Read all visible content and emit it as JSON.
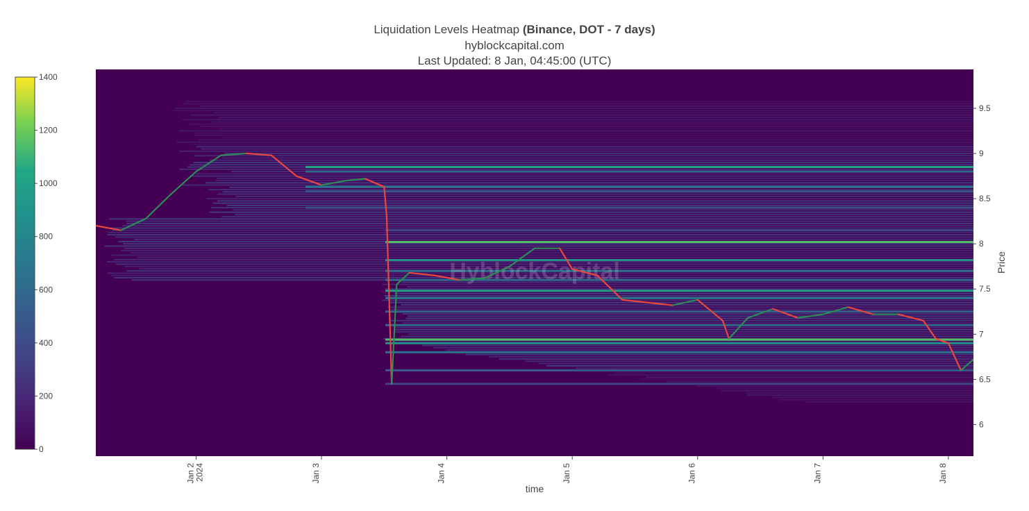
{
  "title": {
    "main": "Liquidation Levels Heatmap ",
    "bold": "(Binance, DOT - 7 days)",
    "site": "hyblockcapital.com",
    "updated": "Last Updated: 8 Jan, 04:45:00 (UTC)"
  },
  "watermark": "HyblockCapital",
  "chart_data": {
    "type": "heatmap",
    "xlabel": "time",
    "ylabel": "Price",
    "x_ticks": [
      {
        "label": "Jan 2",
        "sub": "2024",
        "value": 1.0
      },
      {
        "label": "Jan 3",
        "sub": "",
        "value": 2.0
      },
      {
        "label": "Jan 4",
        "sub": "",
        "value": 3.0
      },
      {
        "label": "Jan 5",
        "sub": "",
        "value": 4.0
      },
      {
        "label": "Jan 6",
        "sub": "",
        "value": 5.0
      },
      {
        "label": "Jan 7",
        "sub": "",
        "value": 6.0
      },
      {
        "label": "Jan 8",
        "sub": "",
        "value": 7.0
      }
    ],
    "xlim": [
      0.2,
      7.2
    ],
    "y_ticks": [
      6,
      6.5,
      7,
      7.5,
      8,
      8.5,
      9,
      9.5
    ],
    "y_tick_labels": [
      "6",
      "6.5",
      "7",
      "7.5",
      "8",
      "8.5",
      "9",
      "9.5"
    ],
    "ylim": [
      5.65,
      9.93
    ],
    "colorbar": {
      "min": 0,
      "max": 1400,
      "ticks": [
        0,
        200,
        400,
        600,
        800,
        1000,
        1200,
        1400
      ],
      "colorscale": "viridis",
      "position": "left"
    },
    "price_series": {
      "name": "DOT price",
      "x": [
        0.2,
        0.4,
        0.6,
        0.8,
        1.0,
        1.2,
        1.4,
        1.6,
        1.8,
        2.0,
        2.2,
        2.35,
        2.5,
        2.52,
        2.56,
        2.6,
        2.7,
        2.9,
        3.1,
        3.3,
        3.5,
        3.7,
        3.9,
        4.0,
        4.2,
        4.4,
        4.6,
        4.8,
        5.0,
        5.2,
        5.25,
        5.4,
        5.6,
        5.8,
        6.0,
        6.2,
        6.4,
        6.6,
        6.8,
        6.9,
        7.0,
        7.1,
        7.2
      ],
      "y": [
        8.2,
        8.15,
        8.28,
        8.55,
        8.8,
        8.98,
        9.0,
        8.98,
        8.75,
        8.65,
        8.7,
        8.72,
        8.63,
        8.3,
        6.45,
        7.55,
        7.68,
        7.65,
        7.6,
        7.62,
        7.75,
        7.95,
        7.95,
        7.72,
        7.65,
        7.38,
        7.35,
        7.32,
        7.38,
        7.15,
        6.95,
        7.18,
        7.28,
        7.18,
        7.22,
        7.3,
        7.22,
        7.22,
        7.15,
        6.95,
        6.9,
        6.6,
        6.72
      ]
    },
    "liquidation_levels": [
      {
        "price": 8.85,
        "value": 1050
      },
      {
        "price": 8.8,
        "value": 600
      },
      {
        "price": 8.63,
        "value": 700
      },
      {
        "price": 8.58,
        "value": 500
      },
      {
        "price": 8.4,
        "value": 450
      },
      {
        "price": 8.15,
        "value": 400
      },
      {
        "price": 8.02,
        "value": 1150
      },
      {
        "price": 7.82,
        "value": 900
      },
      {
        "price": 7.7,
        "value": 650
      },
      {
        "price": 7.6,
        "value": 600
      },
      {
        "price": 7.48,
        "value": 1000
      },
      {
        "price": 7.4,
        "value": 700
      },
      {
        "price": 7.25,
        "value": 550
      },
      {
        "price": 7.1,
        "value": 600
      },
      {
        "price": 6.94,
        "value": 1150
      },
      {
        "price": 6.9,
        "value": 900
      },
      {
        "price": 6.8,
        "value": 650
      },
      {
        "price": 6.6,
        "value": 500
      },
      {
        "price": 6.45,
        "value": 350
      }
    ]
  },
  "colors": {
    "background": "#440154",
    "price_up": "#2e8b57",
    "price_down": "#e8473f",
    "text": "#444444"
  }
}
